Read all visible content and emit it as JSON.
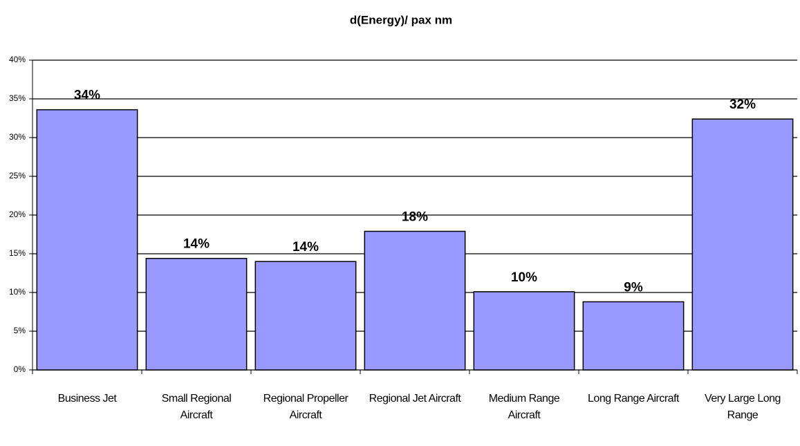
{
  "chart_data": {
    "type": "bar",
    "title": "d(Energy)/ pax nm",
    "categories": [
      "Business Jet",
      "Small Regional Aircraft",
      "Regional Propeller Aircraft",
      "Regional Jet Aircraft",
      "Medium Range Aircraft",
      "Long Range Aircraft",
      "Very Large Long Range"
    ],
    "values": [
      33.6,
      14.4,
      14.0,
      17.9,
      10.1,
      8.8,
      32.4
    ],
    "value_labels": [
      "34%",
      "14%",
      "14%",
      "18%",
      "10%",
      "9%",
      "32%"
    ],
    "color": "#9999ff",
    "ylim": [
      0,
      40
    ],
    "yticks": [
      {
        "value": 0,
        "label": "0%"
      },
      {
        "value": 5,
        "label": "5%"
      },
      {
        "value": 10,
        "label": "10%"
      },
      {
        "value": 15,
        "label": "15%"
      },
      {
        "value": 20,
        "label": "20%"
      },
      {
        "value": 25,
        "label": "25%"
      },
      {
        "value": 30,
        "label": "30%"
      },
      {
        "value": 35,
        "label": "35%"
      },
      {
        "value": 40,
        "label": "40%"
      }
    ],
    "grid": true
  }
}
